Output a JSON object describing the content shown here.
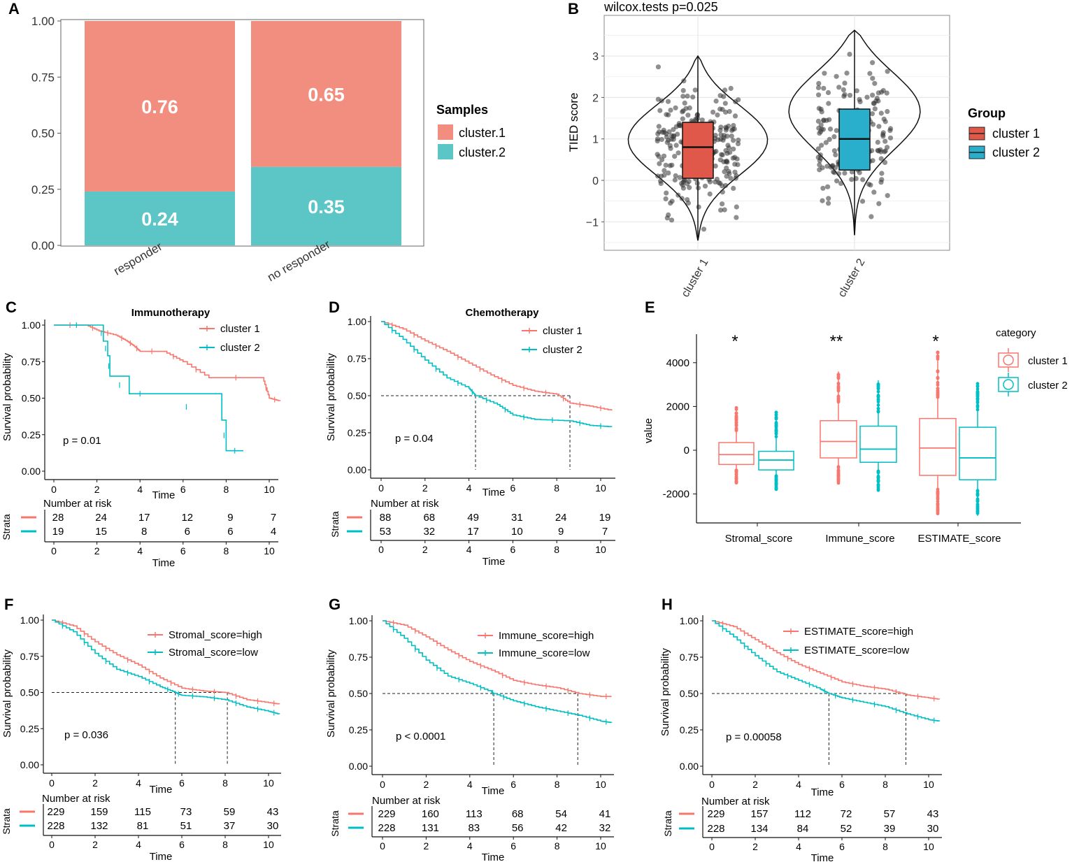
{
  "colors": {
    "c1": "#F28E80",
    "c2": "#5CC5C5",
    "red": "#E8685A",
    "teal": "#1CB8BF",
    "box_red": "#E0584A",
    "box_teal": "#29AECB",
    "line_red": "#F8766D",
    "line_teal": "#00BFC4"
  },
  "chart_data": [
    {
      "id": "A",
      "type": "bar",
      "stacked": true,
      "label": "A",
      "categories": [
        "responder",
        "no responder"
      ],
      "series": [
        {
          "name": "cluster.2",
          "values": [
            0.24,
            0.35
          ],
          "labels": [
            "0.24",
            "0.35"
          ]
        },
        {
          "name": "cluster.1",
          "values": [
            0.76,
            0.65
          ],
          "labels": [
            "0.76",
            "0.65"
          ]
        }
      ],
      "yticks": [
        "0.00",
        "0.25",
        "0.50",
        "0.75",
        "1.00"
      ],
      "ylim": [
        0,
        1
      ],
      "legend_title": "Samples",
      "legend": [
        "cluster.1",
        "cluster.2"
      ]
    },
    {
      "id": "B",
      "type": "scatter",
      "subtype": "violin-box",
      "label": "B",
      "title": "wilcox.tests p=0.025",
      "ylabel": "TIED score",
      "categories": [
        "cluster 1",
        "cluster 2"
      ],
      "ylim": [
        -1.5,
        3.6
      ],
      "yticks": [
        "−1",
        "0",
        "1",
        "2",
        "3"
      ],
      "yticks_values": [
        -1,
        0,
        1,
        2,
        3
      ],
      "boxes": [
        {
          "q1": 0.05,
          "median": 0.8,
          "q3": 1.4,
          "min": -1.45,
          "max": 3.0
        },
        {
          "q1": 0.25,
          "median": 1.0,
          "q3": 1.72,
          "min": -1.32,
          "max": 3.62
        }
      ],
      "legend_title": "Group",
      "legend": [
        "cluster 1",
        "cluster 2"
      ]
    },
    {
      "id": "C",
      "type": "line",
      "subtype": "kaplan-meier",
      "label": "C",
      "title": "Immunotherapy",
      "xlabel": "Time",
      "ylabel": "Survival probability",
      "xlim": [
        -0.4,
        10.5
      ],
      "ylim": [
        0,
        1
      ],
      "xticks": [
        "0",
        "2",
        "4",
        "6",
        "8",
        "10"
      ],
      "yticks": [
        "0.00",
        "0.25",
        "0.50",
        "0.75",
        "1.00"
      ],
      "pvalue": "p = 0.01",
      "legend": [
        "cluster 1",
        "cluster 2"
      ],
      "series": [
        {
          "name": "cluster 1",
          "x": [
            0,
            1.5,
            2.1,
            2.9,
            3.4,
            3.7,
            4.0,
            5.1,
            6.0,
            7.2,
            9.7,
            10.0,
            10.5
          ],
          "y": [
            1,
            1,
            0.96,
            0.93,
            0.89,
            0.86,
            0.82,
            0.82,
            0.75,
            0.64,
            0.64,
            0.5,
            0.48
          ]
        },
        {
          "name": "cluster 2",
          "x": [
            0,
            2.1,
            2.3,
            2.5,
            2.6,
            3.5,
            4.5,
            7.8,
            8.0,
            8.8
          ],
          "y": [
            1,
            1,
            0.89,
            0.79,
            0.65,
            0.53,
            0.53,
            0.35,
            0.14,
            0.14
          ]
        }
      ],
      "risk_title": "Number at risk",
      "risk_xlabel": "Time",
      "strata_label": "Strata",
      "risk": [
        [
          "28",
          "24",
          "17",
          "12",
          "9",
          "7"
        ],
        [
          "19",
          "15",
          "8",
          "6",
          "6",
          "4"
        ]
      ],
      "median_lines": []
    },
    {
      "id": "D",
      "type": "line",
      "subtype": "kaplan-meier",
      "label": "D",
      "title": "Chemotherapy",
      "xlabel": "Time",
      "ylabel": "Survival probability",
      "xlim": [
        -0.4,
        10.5
      ],
      "ylim": [
        0,
        1
      ],
      "xticks": [
        "0",
        "2",
        "4",
        "6",
        "8",
        "10"
      ],
      "yticks": [
        "0.00",
        "0.25",
        "0.50",
        "0.75",
        "1.00"
      ],
      "pvalue": "p = 0.04",
      "legend": [
        "cluster 1",
        "cluster 2"
      ],
      "series": [
        {
          "name": "cluster 1",
          "x": [
            0,
            1,
            2,
            3,
            4,
            5,
            6,
            7,
            8,
            8.6,
            9.5,
            10.5
          ],
          "y": [
            1,
            0.95,
            0.87,
            0.8,
            0.72,
            0.64,
            0.57,
            0.53,
            0.51,
            0.45,
            0.43,
            0.4
          ]
        },
        {
          "name": "cluster 2",
          "x": [
            0,
            1,
            2,
            3,
            4,
            4.3,
            5.3,
            6,
            7,
            8.6,
            9.5,
            10.5
          ],
          "y": [
            1,
            0.88,
            0.74,
            0.62,
            0.55,
            0.5,
            0.44,
            0.37,
            0.34,
            0.33,
            0.3,
            0.29
          ]
        }
      ],
      "risk_title": "Number at risk",
      "risk_xlabel": "Time",
      "strata_label": "Strata",
      "risk": [
        [
          "88",
          "68",
          "49",
          "31",
          "24",
          "19"
        ],
        [
          "53",
          "32",
          "17",
          "10",
          "9",
          "7"
        ]
      ],
      "median_lines": [
        4.3,
        8.6
      ]
    },
    {
      "id": "E",
      "type": "scatter",
      "subtype": "boxplot",
      "label": "E",
      "ylabel": "value",
      "categories": [
        "Stromal_score",
        "Immune_score",
        "ESTIMATE_score"
      ],
      "significance": [
        "*",
        "**",
        "*"
      ],
      "ylim": [
        -3300,
        5300
      ],
      "yticks": [
        "-2000",
        "0",
        "2000",
        "4000"
      ],
      "yticks_values": [
        -2000,
        0,
        2000,
        4000
      ],
      "boxes": [
        [
          {
            "q1": -650,
            "median": -200,
            "q3": 350,
            "min": -1500,
            "max": 2000
          },
          {
            "q1": -900,
            "median": -450,
            "q3": -50,
            "min": -1800,
            "max": 1800
          }
        ],
        [
          {
            "q1": -350,
            "median": 400,
            "q3": 1350,
            "min": -1550,
            "max": 3600
          },
          {
            "q1": -550,
            "median": 50,
            "q3": 1100,
            "min": -1850,
            "max": 3200
          }
        ],
        [
          {
            "q1": -1150,
            "median": 100,
            "q3": 1450,
            "min": -2900,
            "max": 4500
          },
          {
            "q1": -1350,
            "median": -350,
            "q3": 1050,
            "min": -3000,
            "max": 3100
          }
        ]
      ],
      "legend_title": "category",
      "legend": [
        "cluster 1",
        "cluster 2"
      ]
    },
    {
      "id": "F",
      "type": "line",
      "subtype": "kaplan-meier",
      "label": "F",
      "xlabel": "Time",
      "ylabel": "Survival probability",
      "xlim": [
        -0.4,
        10.5
      ],
      "ylim": [
        0,
        1
      ],
      "xticks": [
        "0",
        "2",
        "4",
        "6",
        "8",
        "10"
      ],
      "yticks": [
        "0.00",
        "0.25",
        "0.50",
        "0.75",
        "1.00"
      ],
      "pvalue": "p = 0.036",
      "legend": [
        "Stromal_score=high",
        "Stromal_score=low"
      ],
      "series": [
        {
          "name": "Stromal_score=high",
          "x": [
            0,
            1,
            2,
            3,
            4,
            5,
            6,
            7,
            8,
            9,
            10,
            10.5
          ],
          "y": [
            1,
            0.96,
            0.85,
            0.76,
            0.69,
            0.6,
            0.53,
            0.51,
            0.5,
            0.45,
            0.43,
            0.42
          ]
        },
        {
          "name": "Stromal_score=low",
          "x": [
            0,
            1,
            2,
            3,
            4,
            5,
            5.7,
            6,
            7,
            8,
            9,
            10,
            10.5
          ],
          "y": [
            1,
            0.92,
            0.77,
            0.66,
            0.61,
            0.54,
            0.5,
            0.48,
            0.47,
            0.45,
            0.4,
            0.37,
            0.35
          ]
        }
      ],
      "risk_title": "Number at risk",
      "risk_xlabel": "Time",
      "strata_label": "Strata",
      "risk": [
        [
          "229",
          "159",
          "115",
          "73",
          "59",
          "43"
        ],
        [
          "228",
          "132",
          "81",
          "51",
          "37",
          "30"
        ]
      ],
      "median_lines": [
        5.7,
        8.1
      ]
    },
    {
      "id": "G",
      "type": "line",
      "subtype": "kaplan-meier",
      "label": "G",
      "xlabel": "Time",
      "ylabel": "Survival probability",
      "xlim": [
        -0.4,
        10.5
      ],
      "ylim": [
        0,
        1
      ],
      "xticks": [
        "0",
        "2",
        "4",
        "6",
        "8",
        "10"
      ],
      "yticks": [
        "0.00",
        "0.25",
        "0.50",
        "0.75",
        "1.00"
      ],
      "pvalue": "p < 0.0001",
      "legend": [
        "Immune_score=high",
        "Immune_score=low"
      ],
      "series": [
        {
          "name": "Immune_score=high",
          "x": [
            0,
            1,
            2,
            3,
            4,
            5,
            6,
            7,
            8,
            9,
            10,
            10.5
          ],
          "y": [
            1,
            0.97,
            0.89,
            0.8,
            0.72,
            0.66,
            0.59,
            0.56,
            0.54,
            0.5,
            0.48,
            0.48
          ]
        },
        {
          "name": "Immune_score=low",
          "x": [
            0,
            1,
            2,
            3,
            4,
            5,
            5.1,
            6,
            7,
            8,
            9,
            10,
            10.5
          ],
          "y": [
            1,
            0.88,
            0.73,
            0.62,
            0.57,
            0.51,
            0.5,
            0.45,
            0.41,
            0.38,
            0.35,
            0.31,
            0.3
          ]
        }
      ],
      "risk_title": "Number at risk",
      "risk_xlabel": "Time",
      "strata_label": "Strata",
      "risk": [
        [
          "229",
          "160",
          "113",
          "68",
          "54",
          "41"
        ],
        [
          "228",
          "131",
          "83",
          "56",
          "42",
          "32"
        ]
      ],
      "median_lines": [
        5.1,
        8.95
      ]
    },
    {
      "id": "H",
      "type": "line",
      "subtype": "kaplan-meier",
      "label": "H",
      "xlabel": "Time",
      "ylabel": "Survival probability",
      "xlim": [
        -0.4,
        10.5
      ],
      "ylim": [
        0,
        1
      ],
      "xticks": [
        "0",
        "2",
        "4",
        "6",
        "8",
        "10"
      ],
      "yticks": [
        "0.00",
        "0.25",
        "0.50",
        "0.75",
        "1.00"
      ],
      "pvalue": "p = 0.00058",
      "legend": [
        "ESTIMATE_score=high",
        "ESTIMATE_score=low"
      ],
      "series": [
        {
          "name": "ESTIMATE_score=high",
          "x": [
            0,
            1,
            2,
            3,
            4,
            5,
            6,
            7,
            8,
            9,
            10,
            10.5
          ],
          "y": [
            1,
            0.96,
            0.87,
            0.78,
            0.7,
            0.64,
            0.58,
            0.55,
            0.53,
            0.49,
            0.47,
            0.46
          ]
        },
        {
          "name": "ESTIMATE_score=low",
          "x": [
            0,
            1,
            2,
            3,
            4,
            5,
            5.4,
            6,
            7,
            8,
            9,
            10,
            10.5
          ],
          "y": [
            1,
            0.89,
            0.76,
            0.65,
            0.59,
            0.53,
            0.5,
            0.47,
            0.44,
            0.41,
            0.36,
            0.32,
            0.31
          ]
        }
      ],
      "risk_title": "Number at risk",
      "risk_xlabel": "Time",
      "strata_label": "Strata",
      "risk": [
        [
          "229",
          "157",
          "112",
          "72",
          "57",
          "43"
        ],
        [
          "228",
          "134",
          "84",
          "52",
          "39",
          "30"
        ]
      ],
      "median_lines": [
        5.4,
        8.95
      ]
    }
  ]
}
